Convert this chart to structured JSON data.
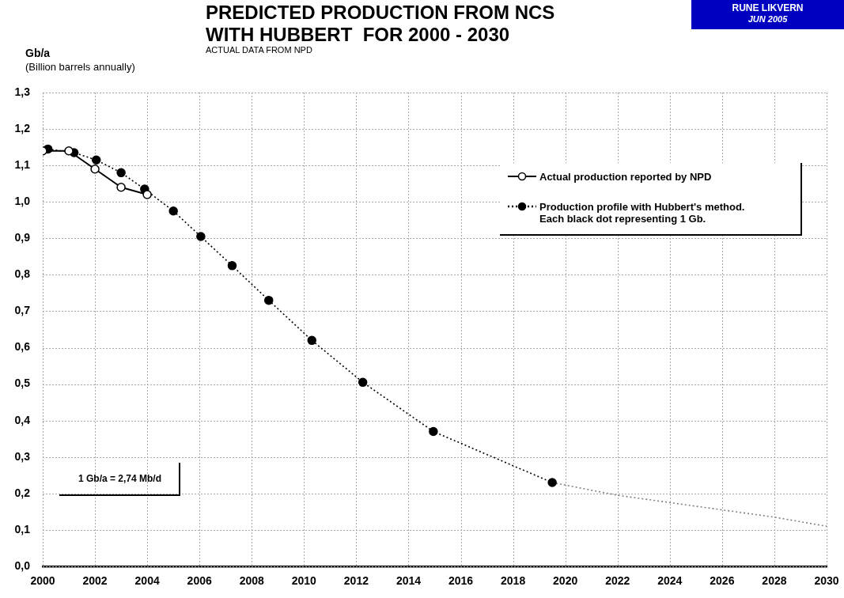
{
  "chart_data": {
    "type": "line",
    "title": "PREDICTED PRODUCTION FROM NCS\nWITH HUBBERT  FOR 2000 - 2030",
    "subtitle": "ACTUAL DATA FROM NPD",
    "ylabel": "Gb/a\n(Billion barrels annually)",
    "annotations": [
      "RUNE LIKVERN\nJUN 2005",
      "1 Gb/a = 2,74 Mb/d"
    ],
    "series": [
      {
        "name": "Actual production reported by NPD",
        "color": "#000000",
        "line_style": "solid",
        "marker": "circle",
        "x": [
          2000,
          2001,
          2002,
          2003,
          2004
        ],
        "values": [
          1.14,
          1.14,
          1.09,
          1.04,
          1.02
        ]
      },
      {
        "name": "Production profile with Hubbert's method.\nEach black dot representing 1 Gb.",
        "color": "#000000",
        "line_style": "dotted",
        "marker": "circle",
        "x": [
          2000.2,
          2001.2,
          2002.05,
          2003,
          2003.9,
          2005,
          2006.05,
          2007.25,
          2008.65,
          2010.3,
          2012.25,
          2014.95,
          2019.5
        ],
        "values": [
          1.145,
          1.135,
          1.115,
          1.08,
          1.035,
          0.975,
          0.905,
          0.825,
          0.73,
          0.62,
          0.505,
          0.37,
          0.23
        ]
      },
      {
        "color": "#808080",
        "line_style": "dotted",
        "marker": "none",
        "x": [
          2019.5,
          2022,
          2024,
          2026,
          2028,
          2030
        ],
        "values": [
          0.23,
          0.195,
          0.175,
          0.155,
          0.135,
          0.11
        ]
      }
    ],
    "xlim": [
      2000,
      2030
    ],
    "xticks": [
      2000,
      2002,
      2004,
      2006,
      2008,
      2010,
      2012,
      2014,
      2016,
      2018,
      2020,
      2022,
      2024,
      2026,
      2028,
      2030
    ],
    "ylim": [
      0,
      1.3
    ],
    "yticks": [
      {
        "value": 0,
        "label": "0,0"
      },
      {
        "value": 0.1,
        "label": "0,1"
      },
      {
        "value": 0.2,
        "label": "0,2"
      },
      {
        "value": 0.3,
        "label": "0,3"
      },
      {
        "value": 0.4,
        "label": "0,4"
      },
      {
        "value": 0.5,
        "label": "0,5"
      },
      {
        "value": 0.6,
        "label": "0,6"
      },
      {
        "value": 0.7,
        "label": "0,7"
      },
      {
        "value": 0.8,
        "label": "0,8"
      },
      {
        "value": 0.9,
        "label": "0,9"
      },
      {
        "value": 1.0,
        "label": "1,0"
      },
      {
        "value": 1.1,
        "label": "1,1"
      },
      {
        "value": 1.2,
        "label": "1,2"
      },
      {
        "value": 1.3,
        "label": "1,3"
      }
    ],
    "grid": true,
    "legend": "right"
  }
}
